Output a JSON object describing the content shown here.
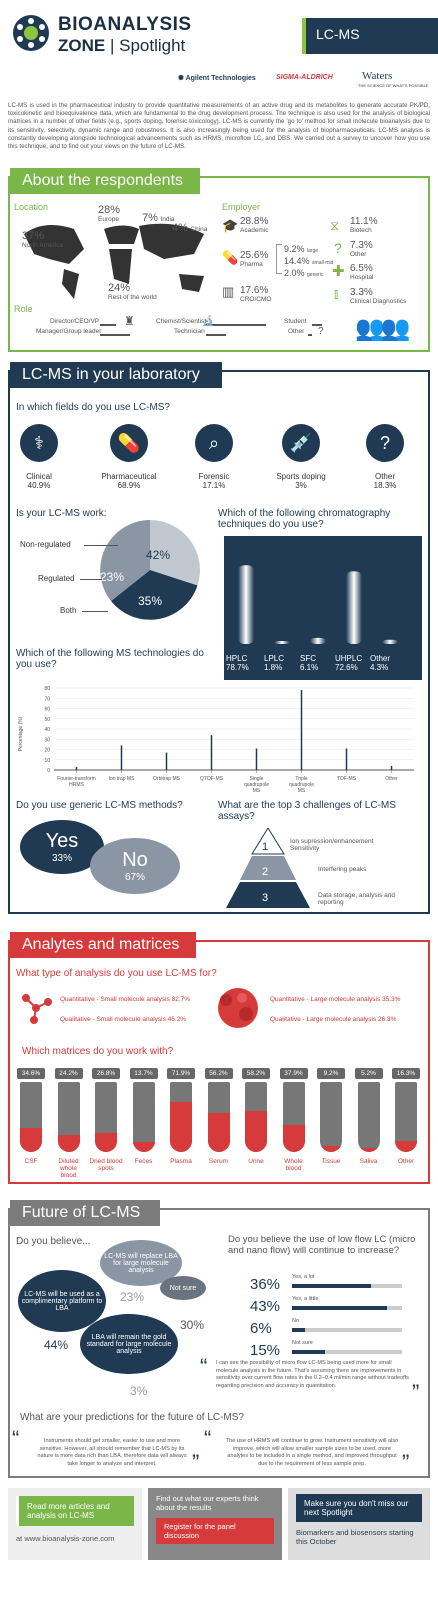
{
  "header": {
    "brand_line1": "BIOANALYSIS",
    "brand_line2_a": "ZONE",
    "brand_line2_b": "Spotlight",
    "tag": "LC-MS",
    "sponsors": [
      "Agilent Technologies",
      "SIGMA-ALDRICH",
      "Waters"
    ],
    "waters_tagline": "THE SCIENCE OF WHAT'S POSSIBLE",
    "intro": "LC-MS is used in the pharmaceutical industry to provide quantitative measurements of an active drug and its metabolites to generate accurate PK/PD, toxicokinetic and bioequivalence data, which are fundamental to the drug development process. The technique is also used for the analysis of biological matrices in a number of other fields (e.g., sports doping, forensic toxicology). LC-MS is currently the 'go to' method for small molecule bioanalysis due to its sensitivity, selectivity, dynamic range and robustness. It is also increasingly being used for the analysis of biopharmaceuticals. LC-MS analysis is constantly developing alongside technological advancements such as HRMS, microflow LC, and DBS. We carried out a survey to uncover how you use this technique, and to find out your views on the future of LC-MS."
  },
  "respondents": {
    "title": "About the respondents",
    "location_label": "Location",
    "locations": [
      {
        "pct": "37%",
        "name": "North America"
      },
      {
        "pct": "28%",
        "name": "Europe"
      },
      {
        "pct": "7%",
        "name": "India"
      },
      {
        "pct": "4%",
        "name": "China"
      },
      {
        "pct": "24%",
        "name": "Rest of the world"
      }
    ],
    "employer_label": "Employer",
    "employers": [
      {
        "pct": "28.8%",
        "name": "Academic"
      },
      {
        "pct": "25.6%",
        "name": "Pharma"
      },
      {
        "pct": "17.6%",
        "name": "CRO/CMO"
      },
      {
        "pct": "11.1%",
        "name": "Biotech"
      },
      {
        "pct": "7.3%",
        "name": "Other"
      },
      {
        "pct": "6.5%",
        "name": "Hospital"
      },
      {
        "pct": "3.3%",
        "name": "Clinical Diagnostics"
      }
    ],
    "pharma_split": [
      {
        "pct": "9.2%",
        "name": "large"
      },
      {
        "pct": "14.4%",
        "name": "small-mid"
      },
      {
        "pct": "2.0%",
        "name": "generic"
      }
    ],
    "role_label": "Role",
    "roles": [
      "Director/CEO/VP",
      "Manager/Group leader",
      "Chemist/Scientist",
      "Technician",
      "Student",
      "Other"
    ]
  },
  "lab": {
    "title": "LC-MS in your laboratory",
    "fields_q": "In which fields do you use LC-MS?",
    "fields": [
      {
        "name": "Clinical",
        "pct": "40.9%",
        "icon": "?"
      },
      {
        "name": "Pharmaceutical",
        "pct": "68.9%"
      },
      {
        "name": "Forensic",
        "pct": "17.1%"
      },
      {
        "name": "Sports doping",
        "pct": "3%"
      },
      {
        "name": "Other",
        "pct": "18.3%",
        "icon": "?"
      }
    ],
    "work_q": "Is your LC-MS work:",
    "work": [
      {
        "name": "Non-regulated",
        "pct": "42%",
        "value": 42
      },
      {
        "name": "Regulated",
        "pct": "23%",
        "value": 23
      },
      {
        "name": "Both",
        "pct": "35%",
        "value": 35
      }
    ],
    "chrom_q": "Which of the following chromatography techniques do you use?",
    "chrom": [
      {
        "name": "HPLC",
        "pct": "78.7%",
        "value": 78.7
      },
      {
        "name": "LPLC",
        "pct": "1.8%",
        "value": 1.8
      },
      {
        "name": "SFC",
        "pct": "6.1%",
        "value": 6.1
      },
      {
        "name": "UHPLC",
        "pct": "72.6%",
        "value": 72.6
      },
      {
        "name": "Other",
        "pct": "4.3%",
        "value": 4.3
      }
    ],
    "ms_q": "Which of the following MS technologies do you use?",
    "ms_chart": {
      "type": "bar",
      "ylabel": "Percentage (%)",
      "yticks": [
        "80",
        "70",
        "60",
        "50",
        "40",
        "30",
        "20",
        "10",
        "0"
      ],
      "categories": [
        "Fourier-transform HRMS",
        "Ion trap MS",
        "Orbitrap MS",
        "QTOF-MS",
        "Single quadrupole MS",
        "Triple quadrupole MS",
        "TOF-MS",
        "Other"
      ],
      "values": [
        3,
        24,
        17,
        34,
        21,
        78,
        21,
        4
      ],
      "ylim": [
        0,
        80
      ]
    },
    "generic_q": "Do you use generic LC-MS methods?",
    "yes": "Yes",
    "yes_pct": "33%",
    "no": "No",
    "no_pct": "67%",
    "challenges_q": "What are the top 3 challenges of LC-MS assays?",
    "challenges": [
      {
        "rank": "1",
        "text": "Ion supression/enhancement Sensitivity"
      },
      {
        "rank": "2",
        "text": "Interfering peaks"
      },
      {
        "rank": "3",
        "text": "Data storage, analysis and reporting"
      }
    ]
  },
  "analytes": {
    "title": "Analytes and matrices",
    "type_q": "What type of analysis do you use LC-MS for?",
    "small": [
      "Quantitative - Small molecule analysis 82.7%",
      "Qualitative - Small molecule analysis 46.2%"
    ],
    "large": [
      "Quantitative - Large molecule analysis 35.3%",
      "Qualitative - Large molecule analysis 26.3%"
    ],
    "matrices_q": "Which matrices do you work with?",
    "matrices": [
      {
        "name": "CSF",
        "pct": "34.6%",
        "value": 34.6
      },
      {
        "name": "Diluted whole blood",
        "pct": "24.2%",
        "value": 24.2
      },
      {
        "name": "Dried blood spots",
        "pct": "26.8%",
        "value": 26.8
      },
      {
        "name": "Feces",
        "pct": "13.7%",
        "value": 13.7
      },
      {
        "name": "Plasma",
        "pct": "71.9%",
        "value": 71.9
      },
      {
        "name": "Serum",
        "pct": "56.2%",
        "value": 56.2
      },
      {
        "name": "Urine",
        "pct": "58.2%",
        "value": 58.2
      },
      {
        "name": "Whole blood",
        "pct": "37.9%",
        "value": 37.9
      },
      {
        "name": "Tissue",
        "pct": "9.2%",
        "value": 9.2
      },
      {
        "name": "Saliva",
        "pct": "5.2%",
        "value": 5.2
      },
      {
        "name": "Other",
        "pct": "16.3%",
        "value": 16.3
      }
    ]
  },
  "future": {
    "title": "Future of LC-MS",
    "believe_q": "Do you believe...",
    "beliefs": [
      {
        "text": "LC-MS will replace LBA for large molecule analysis",
        "pct": "23%"
      },
      {
        "text": "Not sure",
        "pct": "30%"
      },
      {
        "text": "LC-MS will be used as a complimentary platform to LBA",
        "pct": "44%"
      },
      {
        "text": "LBA will remain the gold standard for large molecule analysis",
        "pct": "3%"
      }
    ],
    "flow_q": "Do you believe the use of low flow LC (micro and nano flow) will continue to increase?",
    "flow": [
      {
        "pct": "36%",
        "name": "Yes, a lot",
        "value": 36
      },
      {
        "pct": "43%",
        "name": "Yes, a little",
        "value": 43
      },
      {
        "pct": "6%",
        "name": "No",
        "value": 6
      },
      {
        "pct": "15%",
        "name": "Not sure",
        "value": 15
      }
    ],
    "quote1": "I can see the possibility of micro flow LC-MS being used more for small molecule analysis in the future. That's assuming there are improvements in sensitivity over current flow rates in the 0.2–0.4 ml/min range without tradeoffs regarding precision and accuracy in quantitation.",
    "predict_q": "What are your predictions for the future of LC-MS?",
    "quote2": "Instruments should get smaller, easier to use and more sensitive. However, all should remember that LC-MS by its nature is more data rich than LBA, therefore data will always take longer to analyze and interpret.",
    "quote3": "The use of HRMS will continue to grow. Instrument sensitivity will also improve, which will allow smaller sample sizes to be used, more analytes to be included in a single method, and improved throughput due to the requirement of less sample prep."
  },
  "footer": {
    "box1": "Read more articles and analysis on LC-MS",
    "box1_sub": "at www.bioanalysis-zone.com",
    "box2": "Find out what our experts think about the results",
    "box2_btn": "Register for the panel discussion",
    "box3": "Make sure you don't miss our next Spotlight",
    "box3_sub": "Biomarkers and biosensors starting this October"
  }
}
